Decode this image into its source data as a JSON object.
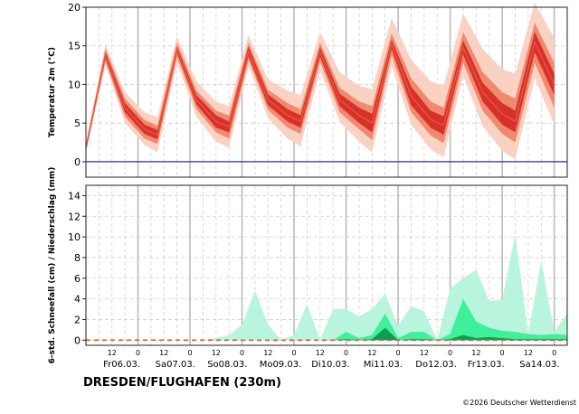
{
  "station": "DRESDEN/FLUGHAFEN (230m)",
  "credit": "©2026 Deutscher Wetterdienst",
  "colors": {
    "temp_outer": "#f9d2c4",
    "temp_mid": "#f08a6e",
    "temp_inner": "#d8302a",
    "temp_line": "#e8553c",
    "prec_outer": "#b8f5dc",
    "prec_mid": "#3ff09a",
    "prec_inner": "#0f9b55",
    "zero_line": "#2233aa",
    "day_line": "#bbbbbb",
    "grid": "#d0d0d0"
  },
  "chart_data": [
    {
      "type": "area",
      "title": "",
      "ylabel": "Temperatur 2m (°C)",
      "ylim": [
        -2,
        20
      ],
      "yticks": [
        0,
        5,
        10,
        15,
        20
      ],
      "x": [
        0,
        9,
        18,
        27,
        33,
        42,
        51,
        60,
        66,
        75,
        84,
        93,
        99,
        108,
        117,
        126,
        132,
        141,
        150,
        159,
        165,
        174,
        183,
        192,
        198,
        207,
        216
      ],
      "x_unit": "hours since Fr06.03. 00 UTC",
      "series": [
        {
          "name": "median",
          "values": [
            1.8,
            13.8,
            7,
            4.2,
            3.5,
            14.5,
            8,
            5.2,
            4.5,
            14.3,
            8,
            6,
            5.2,
            14.2,
            8,
            6,
            5,
            15.2,
            8.5,
            5.5,
            4.7,
            14.8,
            9,
            6.2,
            5.2,
            15.5,
            10
          ]
        },
        {
          "name": "band_inner_low",
          "values": [
            1.6,
            13.4,
            6.4,
            3.6,
            2.9,
            14.1,
            7.4,
            4.4,
            3.8,
            13.7,
            7.3,
            5.2,
            4.4,
            13.6,
            7.2,
            5,
            3.8,
            14.6,
            7.3,
            4.4,
            3.5,
            13.9,
            7.8,
            4.8,
            3.8,
            14.2,
            8.6
          ]
        },
        {
          "name": "band_inner_high",
          "values": [
            2,
            14.2,
            7.6,
            4.8,
            4.1,
            14.9,
            8.6,
            6,
            5.2,
            14.9,
            8.7,
            6.8,
            6,
            14.8,
            8.8,
            7,
            6.2,
            15.8,
            9.7,
            6.6,
            5.9,
            15.7,
            10.2,
            7.6,
            6.6,
            16.8,
            11.4
          ]
        },
        {
          "name": "band_mid_low",
          "values": [
            1.4,
            13,
            5.8,
            3,
            2.3,
            13.6,
            6.8,
            3.8,
            3,
            13.2,
            6.7,
            4.4,
            3.6,
            13,
            6.4,
            4.2,
            2.8,
            13.8,
            6.4,
            3.4,
            2.4,
            12.8,
            6.6,
            3.6,
            2.5,
            12.8,
            7
          ]
        },
        {
          "name": "band_mid_high",
          "values": [
            2.2,
            14.6,
            8.2,
            5.4,
            4.7,
            15.4,
            9.2,
            6.6,
            6,
            15.4,
            9.3,
            7.6,
            6.8,
            15.4,
            9.6,
            7.8,
            7.2,
            16.6,
            10.8,
            7.8,
            7,
            16.8,
            11.6,
            9,
            8.2,
            18,
            12.8
          ]
        },
        {
          "name": "band_outer_low",
          "values": [
            1.1,
            12.5,
            5,
            2.2,
            1.2,
            12.8,
            5.8,
            2.6,
            1.8,
            12.4,
            5.6,
            3,
            2,
            11.8,
            5.2,
            2.6,
            1.2,
            12.4,
            4.8,
            1.6,
            0.6,
            11.2,
            4.6,
            1.4,
            0.3,
            10.8,
            4.8
          ]
        },
        {
          "name": "band_outer_high",
          "values": [
            2.5,
            15.2,
            9,
            6.4,
            5.8,
            16.2,
            10.4,
            7.8,
            7.2,
            16.4,
            10.6,
            9.2,
            8.6,
            16.8,
            11.6,
            9.8,
            9.4,
            18.6,
            13.2,
            10.4,
            9.8,
            19.2,
            14.6,
            12,
            11.4,
            20.6,
            16
          ]
        }
      ]
    },
    {
      "type": "area",
      "title": "",
      "ylabel": "6-std. Schneefall (cm) / Niederschlag (mm)",
      "ylim": [
        -0.5,
        15
      ],
      "yticks": [
        0,
        2,
        4,
        6,
        8,
        10,
        12,
        14
      ],
      "x": [
        0,
        6,
        12,
        18,
        24,
        30,
        36,
        42,
        48,
        54,
        60,
        66,
        72,
        78,
        84,
        90,
        96,
        102,
        108,
        114,
        120,
        126,
        132,
        138,
        144,
        150,
        156,
        162,
        168,
        174,
        180,
        186,
        192,
        198,
        204,
        210,
        216,
        222
      ],
      "x_unit": "hours since Fr06.03. 00 UTC",
      "series": [
        {
          "name": "band_outer_high",
          "values": [
            0,
            0,
            0,
            0,
            0,
            0,
            0,
            0,
            0,
            0,
            0.2,
            0.5,
            1.5,
            4.8,
            1.5,
            0,
            0.5,
            3.5,
            0,
            3,
            3,
            2.3,
            3,
            4.5,
            1.4,
            3.3,
            2.8,
            0,
            5,
            6,
            6.8,
            3.8,
            3.9,
            10.3,
            0.6,
            7.7,
            0.8,
            2.6
          ]
        },
        {
          "name": "band_mid_high",
          "values": [
            0,
            0,
            0,
            0,
            0,
            0,
            0,
            0,
            0,
            0,
            0,
            0,
            0,
            0,
            0,
            0,
            0,
            0,
            0,
            0,
            0.8,
            0.2,
            0.5,
            2.6,
            0.2,
            0.8,
            0.8,
            0,
            0.6,
            4,
            1.8,
            1.2,
            0.9,
            0.8,
            0.6,
            0.5,
            0.6,
            0.5
          ]
        },
        {
          "name": "band_inner_high",
          "values": [
            0,
            0,
            0,
            0,
            0,
            0,
            0,
            0,
            0,
            0,
            0,
            0,
            0,
            0,
            0,
            0,
            0,
            0,
            0,
            0,
            0.1,
            0,
            0.1,
            1.2,
            0,
            0.1,
            0.1,
            0,
            0.1,
            0.5,
            0.2,
            0.3,
            0.2,
            0.1,
            0.1,
            0.1,
            0.1,
            0.1
          ]
        },
        {
          "name": "median",
          "values": [
            0,
            0,
            0,
            0,
            0,
            0,
            0,
            0,
            0,
            0,
            0,
            0,
            0,
            0,
            0,
            0,
            0,
            0,
            0,
            0,
            0,
            0,
            0,
            0,
            0,
            0,
            0,
            0,
            0,
            0,
            0,
            0,
            0,
            0,
            0,
            0,
            0,
            0
          ]
        }
      ]
    }
  ],
  "x_axis": {
    "day_boundaries_h": [
      0,
      24,
      48,
      72,
      96,
      120,
      144,
      168,
      192,
      216
    ],
    "hour_labels": [
      {
        "h": 12,
        "text": "12"
      },
      {
        "h": 24,
        "text": "0"
      },
      {
        "h": 36,
        "text": "12"
      },
      {
        "h": 48,
        "text": "0"
      },
      {
        "h": 60,
        "text": "12"
      },
      {
        "h": 72,
        "text": "0"
      },
      {
        "h": 84,
        "text": "12"
      },
      {
        "h": 96,
        "text": "0"
      },
      {
        "h": 108,
        "text": "12"
      },
      {
        "h": 120,
        "text": "0"
      },
      {
        "h": 132,
        "text": "12"
      },
      {
        "h": 144,
        "text": "0"
      },
      {
        "h": 156,
        "text": "12"
      },
      {
        "h": 168,
        "text": "0"
      },
      {
        "h": 180,
        "text": "12"
      },
      {
        "h": 192,
        "text": "0"
      },
      {
        "h": 204,
        "text": "12"
      },
      {
        "h": 216,
        "text": "0"
      }
    ],
    "day_labels": [
      {
        "h": 8,
        "text": "Fr06.03."
      },
      {
        "h": 32,
        "text": "Sa07.03."
      },
      {
        "h": 56,
        "text": "So08.03."
      },
      {
        "h": 80,
        "text": "Mo09.03."
      },
      {
        "h": 104,
        "text": "Di10.03."
      },
      {
        "h": 128,
        "text": "Mi11.03."
      },
      {
        "h": 152,
        "text": "Do12.03."
      },
      {
        "h": 176,
        "text": "Fr13.03."
      },
      {
        "h": 200,
        "text": "Sa14.03."
      }
    ]
  }
}
